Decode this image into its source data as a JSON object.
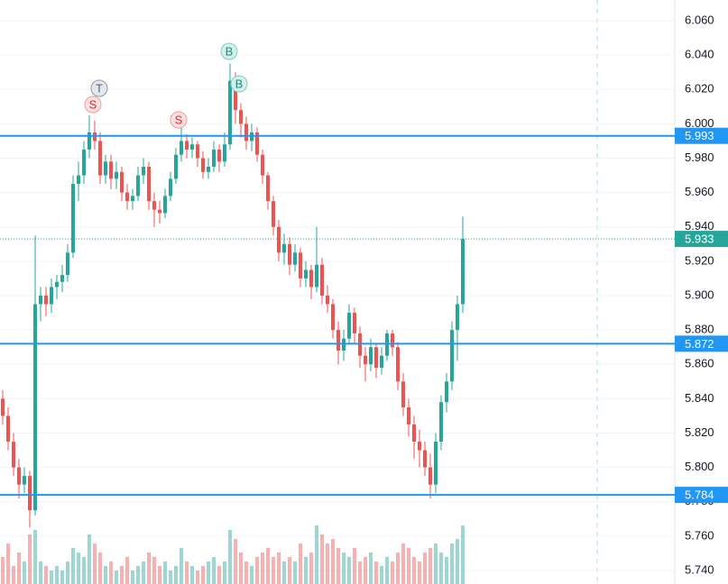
{
  "chart_data": {
    "type": "candlestick",
    "ylim": [
      5.74,
      6.06
    ],
    "yticks": [
      {
        "value": 5.74,
        "label": "5.740"
      },
      {
        "value": 5.76,
        "label": "5.760"
      },
      {
        "value": 5.78,
        "label": "5.780"
      },
      {
        "value": 5.8,
        "label": "5.800"
      },
      {
        "value": 5.82,
        "label": "5.820"
      },
      {
        "value": 5.84,
        "label": "5.840"
      },
      {
        "value": 5.86,
        "label": "5.860"
      },
      {
        "value": 5.88,
        "label": "5.880"
      },
      {
        "value": 5.9,
        "label": "5.900"
      },
      {
        "value": 5.92,
        "label": "5.920"
      },
      {
        "value": 5.94,
        "label": "5.940"
      },
      {
        "value": 5.96,
        "label": "5.960"
      },
      {
        "value": 5.98,
        "label": "5.980"
      },
      {
        "value": 6.0,
        "label": "6.000"
      },
      {
        "value": 6.02,
        "label": "6.020"
      },
      {
        "value": 6.04,
        "label": "6.040"
      },
      {
        "value": 6.06,
        "label": "6.060"
      }
    ],
    "grid": true,
    "up_color": "#26a69a",
    "down_color": "#ef5350",
    "ohlc": [
      [
        5.84,
        5.845,
        5.825,
        5.83
      ],
      [
        5.83,
        5.835,
        5.81,
        5.815
      ],
      [
        5.815,
        5.82,
        5.795,
        5.8
      ],
      [
        5.8,
        5.805,
        5.782,
        5.79
      ],
      [
        5.79,
        5.8,
        5.785,
        5.795
      ],
      [
        5.795,
        5.798,
        5.765,
        5.775
      ],
      [
        5.775,
        5.935,
        5.772,
        5.895
      ],
      [
        5.895,
        5.905,
        5.885,
        5.9
      ],
      [
        5.9,
        5.905,
        5.888,
        5.895
      ],
      [
        5.895,
        5.91,
        5.89,
        5.905
      ],
      [
        5.905,
        5.912,
        5.898,
        5.908
      ],
      [
        5.908,
        5.918,
        5.902,
        5.912
      ],
      [
        5.912,
        5.93,
        5.908,
        5.925
      ],
      [
        5.925,
        5.97,
        5.922,
        5.965
      ],
      [
        5.965,
        5.978,
        5.955,
        5.97
      ],
      [
        5.97,
        5.99,
        5.965,
        5.985
      ],
      [
        5.985,
        6.005,
        5.98,
        5.995
      ],
      [
        5.995,
        6.002,
        5.985,
        5.99
      ],
      [
        5.99,
        5.995,
        5.965,
        5.97
      ],
      [
        5.97,
        5.982,
        5.965,
        5.978
      ],
      [
        5.978,
        5.982,
        5.962,
        5.968
      ],
      [
        5.968,
        5.978,
        5.962,
        5.972
      ],
      [
        5.972,
        5.975,
        5.955,
        5.96
      ],
      [
        5.96,
        5.965,
        5.95,
        5.955
      ],
      [
        5.955,
        5.962,
        5.95,
        5.958
      ],
      [
        5.958,
        5.975,
        5.955,
        5.97
      ],
      [
        5.97,
        5.98,
        5.965,
        5.975
      ],
      [
        5.975,
        5.978,
        5.95,
        5.955
      ],
      [
        5.955,
        5.96,
        5.94,
        5.95
      ],
      [
        5.95,
        5.955,
        5.942,
        5.948
      ],
      [
        5.948,
        5.962,
        5.945,
        5.958
      ],
      [
        5.958,
        5.972,
        5.955,
        5.968
      ],
      [
        5.968,
        5.986,
        5.965,
        5.982
      ],
      [
        5.982,
        5.998,
        5.978,
        5.99
      ],
      [
        5.99,
        5.994,
        5.98,
        5.985
      ],
      [
        5.985,
        5.992,
        5.98,
        5.988
      ],
      [
        5.988,
        5.99,
        5.975,
        5.98
      ],
      [
        5.98,
        5.984,
        5.968,
        5.972
      ],
      [
        5.972,
        5.98,
        5.968,
        5.975
      ],
      [
        5.975,
        5.99,
        5.972,
        5.985
      ],
      [
        5.985,
        5.988,
        5.972,
        5.978
      ],
      [
        5.978,
        5.995,
        5.975,
        5.988
      ],
      [
        5.988,
        6.035,
        5.985,
        6.025
      ],
      [
        6.025,
        6.03,
        6.0,
        6.008
      ],
      [
        6.008,
        6.012,
        5.992,
        6.0
      ],
      [
        6.0,
        6.004,
        5.985,
        5.99
      ],
      [
        5.99,
        6.0,
        5.984,
        5.995
      ],
      [
        5.995,
        5.998,
        5.978,
        5.982
      ],
      [
        5.982,
        5.985,
        5.965,
        5.97
      ],
      [
        5.97,
        5.972,
        5.95,
        5.955
      ],
      [
        5.955,
        5.958,
        5.935,
        5.94
      ],
      [
        5.94,
        5.944,
        5.92,
        5.925
      ],
      [
        5.925,
        5.936,
        5.918,
        5.93
      ],
      [
        5.93,
        5.934,
        5.912,
        5.918
      ],
      [
        5.918,
        5.93,
        5.914,
        5.925
      ],
      [
        5.925,
        5.928,
        5.905,
        5.91
      ],
      [
        5.91,
        5.92,
        5.905,
        5.915
      ],
      [
        5.915,
        5.918,
        5.898,
        5.905
      ],
      [
        5.905,
        5.94,
        5.902,
        5.918
      ],
      [
        5.918,
        5.922,
        5.895,
        5.9
      ],
      [
        5.9,
        5.906,
        5.89,
        5.895
      ],
      [
        5.895,
        5.898,
        5.875,
        5.88
      ],
      [
        5.88,
        5.885,
        5.86,
        5.868
      ],
      [
        5.868,
        5.88,
        5.862,
        5.875
      ],
      [
        5.875,
        5.895,
        5.872,
        5.89
      ],
      [
        5.89,
        5.893,
        5.872,
        5.878
      ],
      [
        5.878,
        5.882,
        5.858,
        5.865
      ],
      [
        5.865,
        5.87,
        5.85,
        5.86
      ],
      [
        5.86,
        5.875,
        5.856,
        5.87
      ],
      [
        5.87,
        5.872,
        5.852,
        5.858
      ],
      [
        5.858,
        5.87,
        5.854,
        5.865
      ],
      [
        5.865,
        5.88,
        5.862,
        5.878
      ],
      [
        5.878,
        5.88,
        5.865,
        5.87
      ],
      [
        5.87,
        5.873,
        5.845,
        5.85
      ],
      [
        5.85,
        5.855,
        5.83,
        5.835
      ],
      [
        5.835,
        5.84,
        5.818,
        5.825
      ],
      [
        5.825,
        5.83,
        5.805,
        5.815
      ],
      [
        5.815,
        5.822,
        5.8,
        5.81
      ],
      [
        5.81,
        5.815,
        5.795,
        5.8
      ],
      [
        5.8,
        5.808,
        5.782,
        5.79
      ],
      [
        5.79,
        5.82,
        5.785,
        5.815
      ],
      [
        5.815,
        5.842,
        5.81,
        5.838
      ],
      [
        5.838,
        5.855,
        5.832,
        5.85
      ],
      [
        5.85,
        5.885,
        5.845,
        5.88
      ],
      [
        5.88,
        5.9,
        5.862,
        5.895
      ],
      [
        5.895,
        5.946,
        5.89,
        5.933
      ]
    ],
    "volume": [
      30,
      45,
      20,
      35,
      25,
      55,
      60,
      25,
      20,
      15,
      20,
      15,
      25,
      40,
      35,
      30,
      55,
      45,
      35,
      20,
      25,
      15,
      20,
      30,
      15,
      20,
      25,
      35,
      30,
      20,
      25,
      15,
      20,
      40,
      25,
      20,
      15,
      20,
      25,
      30,
      20,
      25,
      60,
      50,
      35,
      25,
      20,
      30,
      35,
      40,
      30,
      35,
      25,
      30,
      25,
      45,
      30,
      35,
      65,
      55,
      45,
      50,
      40,
      35,
      30,
      40,
      25,
      30,
      35,
      25,
      20,
      30,
      25,
      35,
      45,
      40,
      30,
      25,
      35,
      40,
      45,
      35,
      30,
      45,
      50,
      65
    ],
    "levels": [
      {
        "value": 5.993
      },
      {
        "value": 5.872
      },
      {
        "value": 5.784
      }
    ],
    "level_color": "#2196f3",
    "last_price": {
      "value": 5.933,
      "color": "#26a69a"
    },
    "markers": [
      {
        "label": "T"
      },
      {
        "label": "S"
      },
      {
        "label": "S"
      },
      {
        "label": "B"
      },
      {
        "label": "B"
      }
    ]
  }
}
